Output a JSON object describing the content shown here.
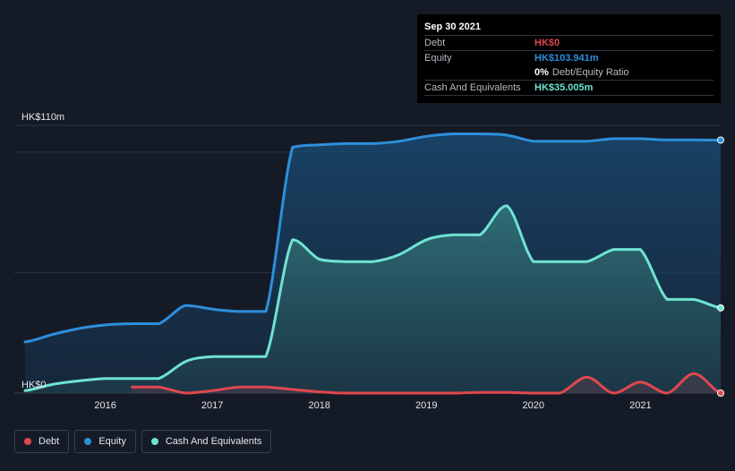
{
  "colors": {
    "debt": "#e0474f",
    "equity": "#2d8fdc",
    "cash": "#6fe3d1",
    "background": "#151b26",
    "grid": "#2c323d"
  },
  "tooltip": {
    "date": "Sep 30 2021",
    "debt_label": "Debt",
    "debt_value": "HK$0",
    "equity_label": "Equity",
    "equity_value": "HK$103.941m",
    "ratio_value": "0%",
    "ratio_label": "Debt/Equity Ratio",
    "cash_label": "Cash And Equivalents",
    "cash_value": "HK$35.005m"
  },
  "legend": [
    {
      "key": "debt",
      "label": "Debt",
      "icon": "debt-dot-icon"
    },
    {
      "key": "equity",
      "label": "Equity",
      "icon": "equity-dot-icon"
    },
    {
      "key": "cash",
      "label": "Cash And Equivalents",
      "icon": "cash-dot-icon"
    }
  ],
  "chart_data": {
    "type": "area",
    "title": "",
    "xlabel": "",
    "ylabel": "",
    "ylim": [
      0,
      110
    ],
    "xlim": [
      2015.15,
      2021.75
    ],
    "y_tick_labels": [
      {
        "value": 110,
        "label": "HK$110m"
      },
      {
        "value": 0,
        "label": "HK$0"
      }
    ],
    "x_ticks": [
      {
        "value": 2016,
        "label": "2016"
      },
      {
        "value": 2017,
        "label": "2017"
      },
      {
        "value": 2018,
        "label": "2018"
      },
      {
        "value": 2019,
        "label": "2019"
      },
      {
        "value": 2020,
        "label": "2020"
      },
      {
        "value": 2021,
        "label": "2021"
      }
    ],
    "grid": true,
    "legend_position": "bottom-left",
    "series": [
      {
        "key": "equity",
        "name": "Equity",
        "x": [
          2015.25,
          2015.5,
          2015.75,
          2016.0,
          2016.25,
          2016.5,
          2016.75,
          2017.0,
          2017.25,
          2017.5,
          2017.75,
          2018.0,
          2018.25,
          2018.5,
          2018.75,
          2019.0,
          2019.25,
          2019.5,
          2019.75,
          2020.0,
          2020.25,
          2020.5,
          2020.75,
          2021.0,
          2021.25,
          2021.5,
          2021.75
        ],
        "values": [
          21,
          24,
          26.5,
          28,
          28.5,
          28.5,
          36,
          34.5,
          33.5,
          33.5,
          101,
          102,
          102.5,
          102.5,
          103.5,
          105.5,
          106.5,
          106.5,
          106,
          103.5,
          103.5,
          103.5,
          104.5,
          104.5,
          104,
          104,
          103.941
        ]
      },
      {
        "key": "cash",
        "name": "Cash And Equivalents",
        "x": [
          2015.25,
          2015.5,
          2015.75,
          2016.0,
          2016.25,
          2016.5,
          2016.75,
          2017.0,
          2017.25,
          2017.5,
          2017.75,
          2018.0,
          2018.25,
          2018.5,
          2018.75,
          2019.0,
          2019.25,
          2019.5,
          2019.75,
          2020.0,
          2020.25,
          2020.5,
          2020.75,
          2021.0,
          2021.25,
          2021.5,
          2021.75
        ],
        "values": [
          1,
          3.5,
          5,
          6,
          6,
          6,
          13,
          15,
          15,
          15,
          63,
          55,
          54,
          54,
          57,
          63,
          65,
          65,
          77,
          54,
          54,
          54,
          59,
          59,
          38.5,
          38.5,
          35.005
        ]
      },
      {
        "key": "debt",
        "name": "Debt",
        "x": [
          2016.25,
          2016.5,
          2016.75,
          2017.0,
          2017.25,
          2017.5,
          2017.75,
          2018.0,
          2018.25,
          2018.5,
          2018.75,
          2019.0,
          2019.25,
          2019.5,
          2019.75,
          2020.0,
          2020.25,
          2020.5,
          2020.75,
          2021.0,
          2021.25,
          2021.5,
          2021.75
        ],
        "values": [
          2.5,
          2.5,
          0,
          1,
          2.5,
          2.5,
          1.5,
          0.5,
          0,
          0,
          0,
          0,
          0,
          0.3,
          0.3,
          0,
          0,
          6.5,
          0,
          4.5,
          0,
          8,
          0
        ]
      }
    ]
  }
}
